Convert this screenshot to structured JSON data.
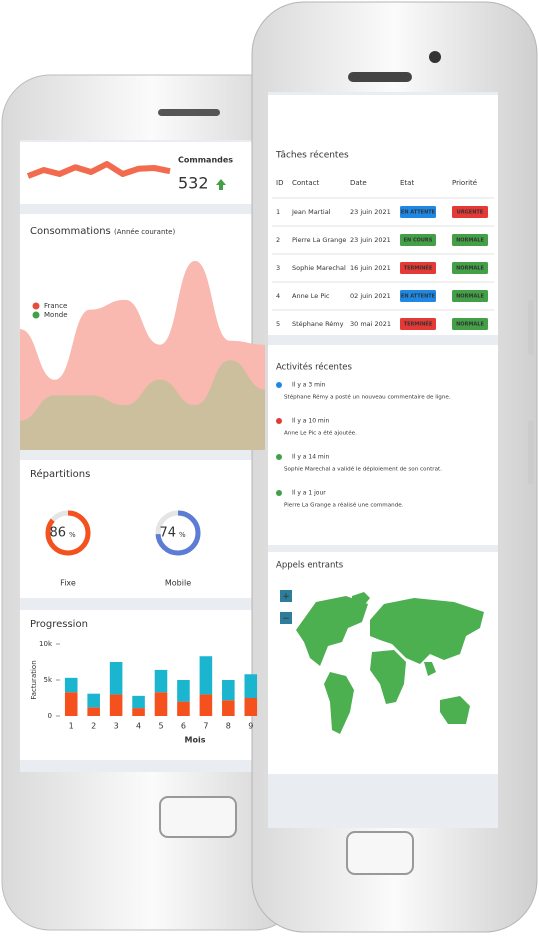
{
  "left_phone": {
    "commandes": {
      "label": "Commandes",
      "value": "532",
      "trend": [
        40,
        55,
        45,
        62,
        50,
        70,
        45,
        58,
        60,
        52
      ],
      "trend_ylim": [
        0,
        100
      ],
      "trend_color": "#f26b4f"
    },
    "consommations": {
      "title": "Consommations",
      "subtitle": "(Année courante)",
      "ylim": [
        0,
        100
      ],
      "series": [
        {
          "name": "France",
          "color": "#f9b8b0",
          "legend_color": "#e74c3c",
          "values": [
            62,
            36,
            72,
            77,
            54,
            97,
            56,
            54
          ]
        },
        {
          "name": "Monde",
          "color": "#cbbf9e",
          "legend_color": "#43a047",
          "values": [
            15,
            28,
            28,
            23,
            36,
            23,
            46,
            31
          ]
        }
      ]
    },
    "repartitions": {
      "title": "Répartitions",
      "items": [
        {
          "label": "Fixe",
          "value": 86,
          "unit": "%",
          "color": "#f4511e"
        },
        {
          "label": "Mobile",
          "value": 74,
          "unit": "%",
          "color": "#5c7cd6"
        }
      ]
    },
    "progression": {
      "type": "bar",
      "title": "Progression",
      "y_label": "Facturation",
      "x_label": "Mois",
      "categories": [
        "1",
        "2",
        "3",
        "4",
        "5",
        "6",
        "7",
        "8",
        "9"
      ],
      "ylim": [
        0,
        10000
      ],
      "yticks": [
        0,
        {
          "value": 5000,
          "label": "5k"
        },
        {
          "value": 10000,
          "label": "10k"
        }
      ],
      "series": [
        {
          "color": "#f4511e",
          "values": [
            3300,
            1200,
            3000,
            1100,
            3300,
            2000,
            3000,
            2200,
            2500
          ]
        },
        {
          "color": "#1cb5cf",
          "values": [
            2000,
            1900,
            4500,
            1700,
            3100,
            3000,
            5300,
            2800,
            3300
          ]
        }
      ]
    }
  },
  "right_phone": {
    "taches": {
      "title": "Tâches récentes",
      "columns": [
        "ID",
        "Contact",
        "Date",
        "Etat",
        "Priorité"
      ],
      "rows": [
        {
          "id": "1",
          "contact": "Jean Martial",
          "date": "23 juin 2021",
          "etat": {
            "label": "EN ATTENTE",
            "color": "#1e88e5"
          },
          "priorite": {
            "label": "URGENTE",
            "color": "#e53935"
          }
        },
        {
          "id": "2",
          "contact": "Pierre La Grange",
          "date": "23 juin 2021",
          "etat": {
            "label": "EN COURS",
            "color": "#43a047"
          },
          "priorite": {
            "label": "NORMALE",
            "color": "#43a047"
          }
        },
        {
          "id": "3",
          "contact": "Sophie Marechal",
          "date": "16 juin 2021",
          "etat": {
            "label": "TERMINÉE",
            "color": "#e53935"
          },
          "priorite": {
            "label": "NORMALE",
            "color": "#43a047"
          }
        },
        {
          "id": "4",
          "contact": "Anne Le Pic",
          "date": "02 juin 2021",
          "etat": {
            "label": "EN ATTENTE",
            "color": "#1e88e5"
          },
          "priorite": {
            "label": "NORMALE",
            "color": "#43a047"
          }
        },
        {
          "id": "5",
          "contact": "Stéphane Rémy",
          "date": "30 mai 2021",
          "etat": {
            "label": "TERMINÉE",
            "color": "#e53935"
          },
          "priorite": {
            "label": "NORMALE",
            "color": "#43a047"
          }
        }
      ]
    },
    "activites": {
      "title": "Activités récentes",
      "items": [
        {
          "time": "Il y a 3 min",
          "text": "Stéphane Rémy a posté un nouveau commentaire de ligne.",
          "color": "#1e88e5"
        },
        {
          "time": "Il y a 10 min",
          "text": "Anne Le Pic a été ajoutée.",
          "color": "#e53935"
        },
        {
          "time": "Il y a 14 min",
          "text": "Sophie Marechal a validé le déploiement de son contrat.",
          "color": "#43a047"
        },
        {
          "time": "Il y a 1 jour",
          "text": "Pierre La Grange a réalisé une commande.",
          "color": "#43a047"
        }
      ]
    },
    "appels": {
      "title": "Appels entrants",
      "zoom_in": "+",
      "zoom_out": "−"
    }
  }
}
